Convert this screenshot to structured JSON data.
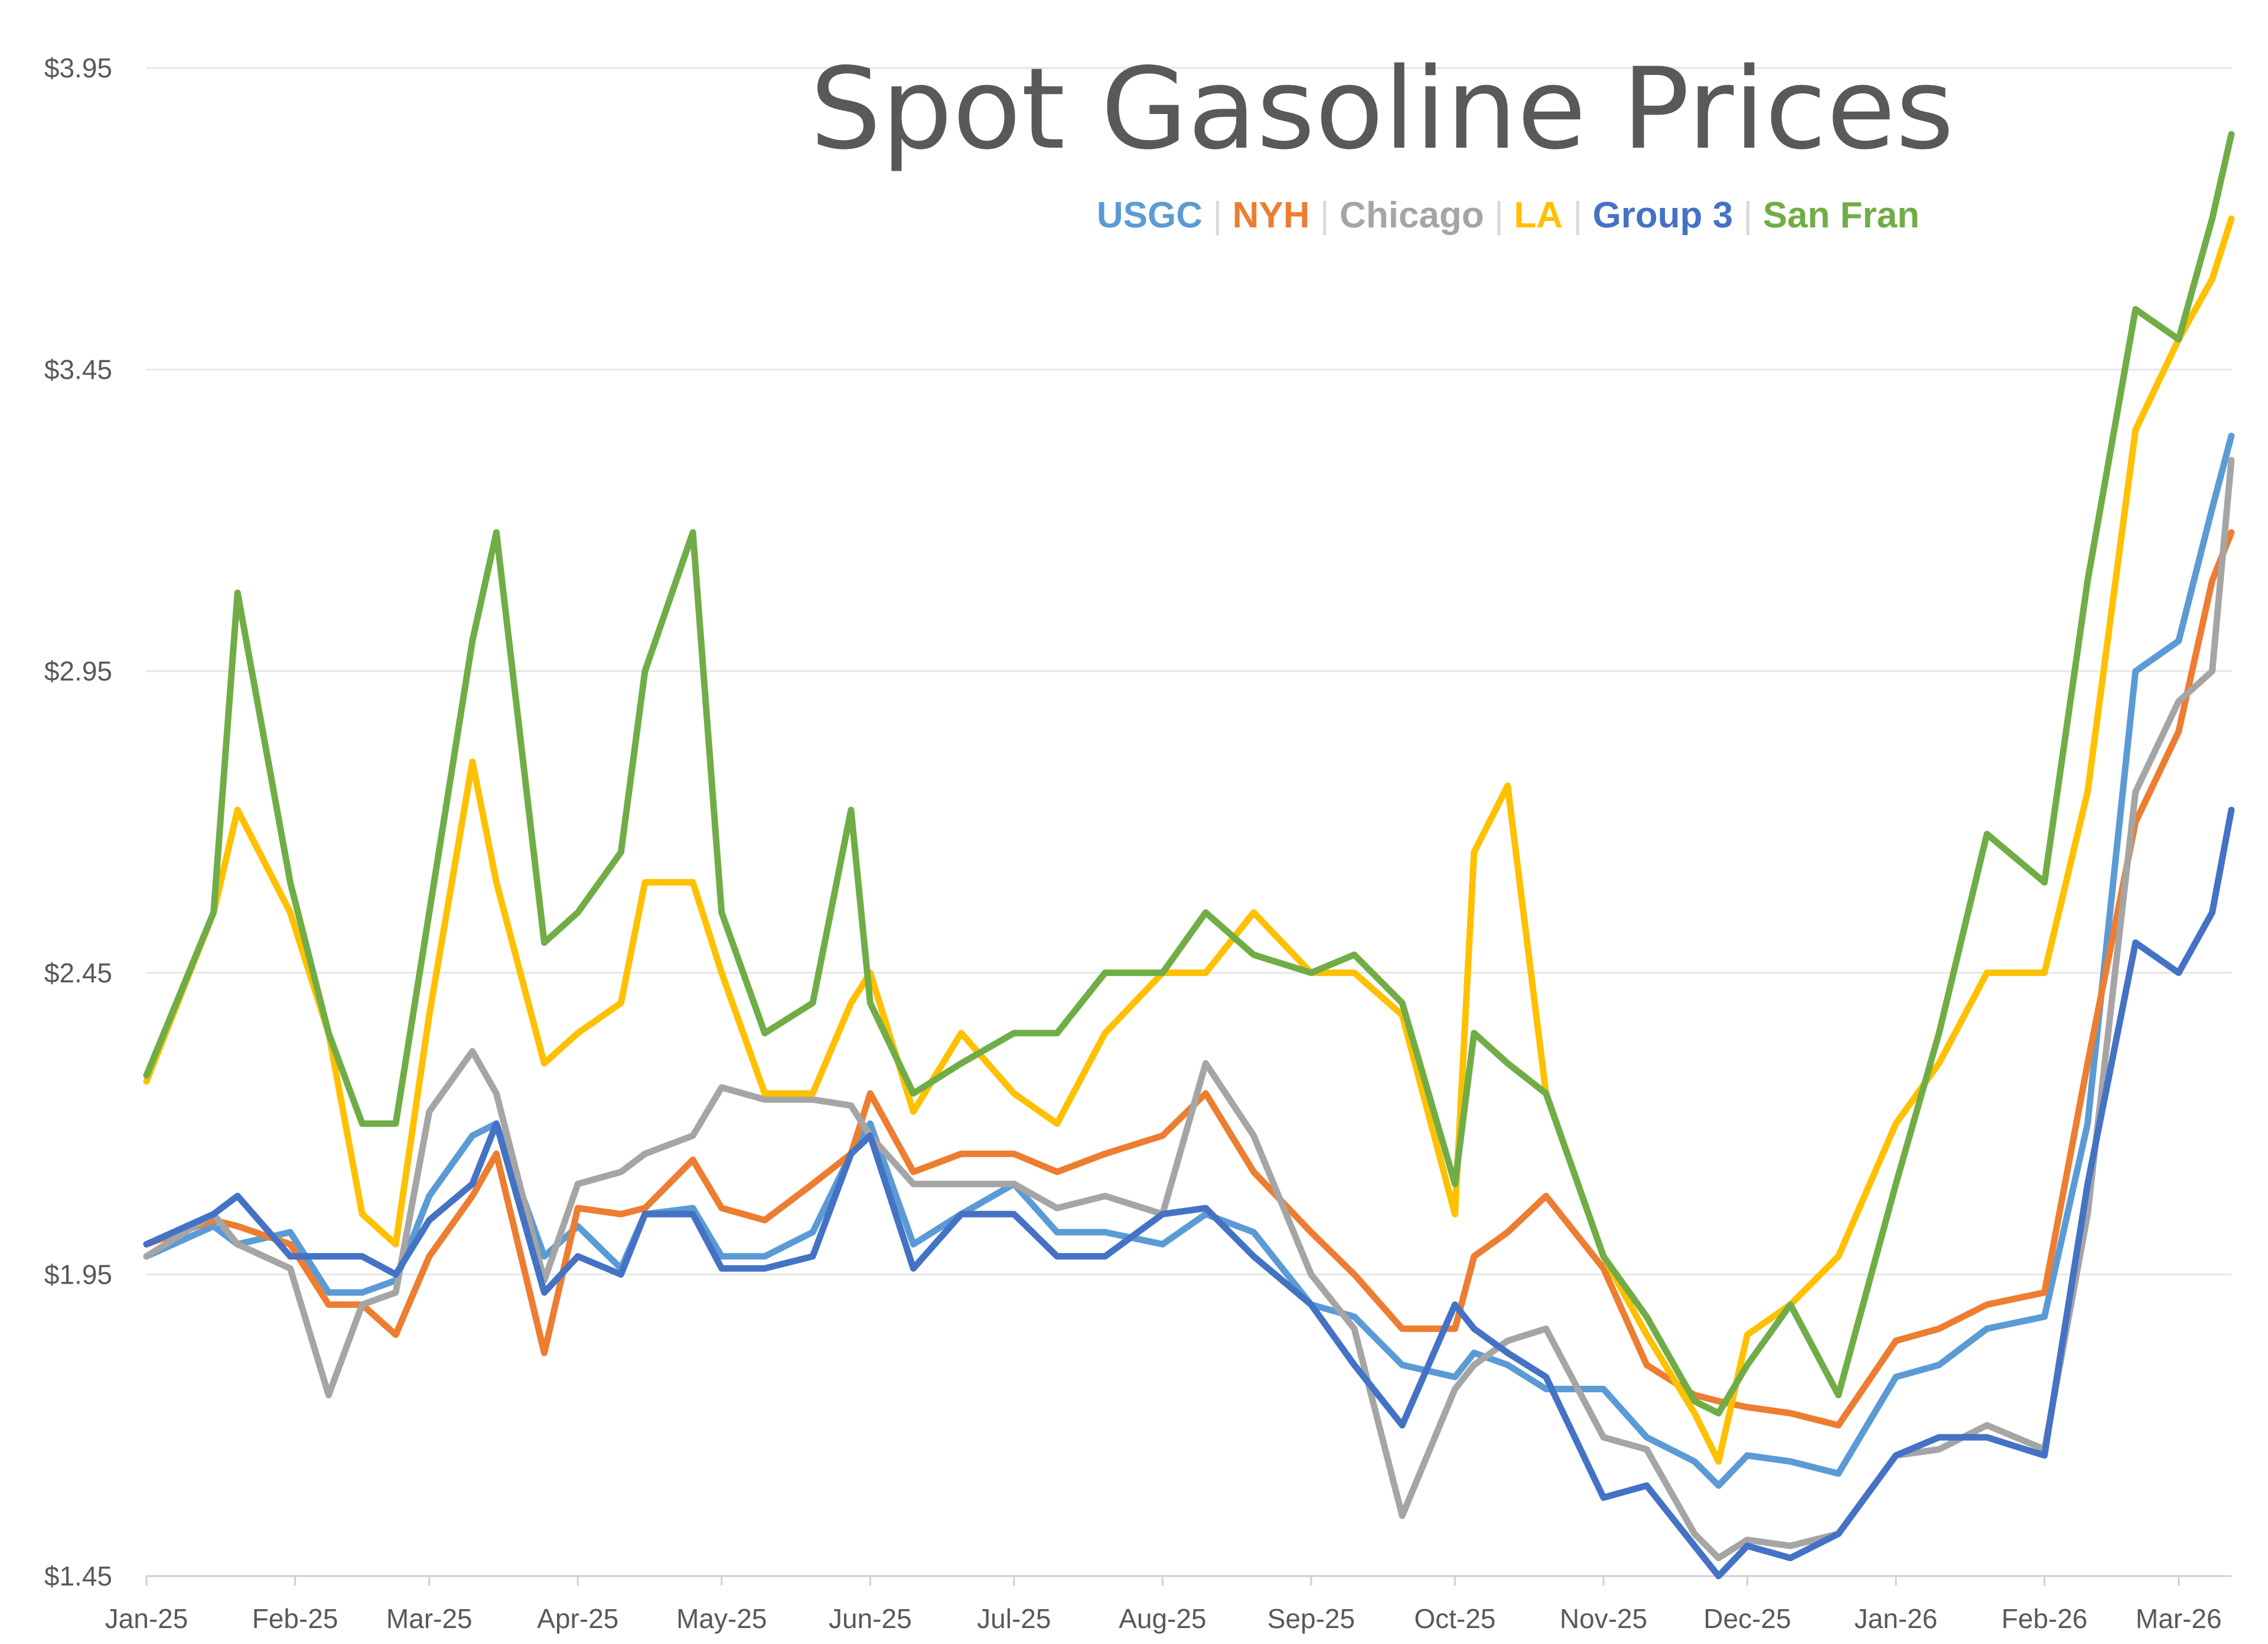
{
  "chart_data": {
    "type": "line",
    "title": "Spot Gasoline Prices",
    "xlabel": "",
    "ylabel": "",
    "ylim": [
      1.45,
      3.95
    ],
    "yticks": [
      "$3.95",
      "$3.45",
      "$2.95",
      "$2.45",
      "$1.95",
      "$1.45"
    ],
    "yticks_values": [
      3.95,
      3.45,
      2.95,
      2.45,
      1.95,
      1.45
    ],
    "xticks": [
      "Jan-25",
      "Feb-25",
      "Mar-25",
      "Apr-25",
      "May-25",
      "Jun-25",
      "Jul-25",
      "Aug-25",
      "Sep-25",
      "Oct-25",
      "Nov-25",
      "Dec-25",
      "Jan-26",
      "Feb-26",
      "Mar-26"
    ],
    "xticks_values": [
      "2025-01-01",
      "2025-02-01",
      "2025-03-01",
      "2025-04-01",
      "2025-05-01",
      "2025-06-01",
      "2025-07-01",
      "2025-08-01",
      "2025-09-01",
      "2025-10-01",
      "2025-11-01",
      "2025-12-01",
      "2026-01-01",
      "2026-02-01",
      "2026-03-01"
    ],
    "x_end": "2026-03-12",
    "grid": true,
    "legend_position": "top-right",
    "legend_separator": "|",
    "x": [
      "2025-01-01",
      "2025-01-15",
      "2025-01-20",
      "2025-01-31",
      "2025-02-08",
      "2025-02-15",
      "2025-02-22",
      "2025-03-01",
      "2025-03-10",
      "2025-03-15",
      "2025-03-25",
      "2025-04-01",
      "2025-04-10",
      "2025-04-15",
      "2025-04-25",
      "2025-05-01",
      "2025-05-10",
      "2025-05-20",
      "2025-05-28",
      "2025-06-01",
      "2025-06-10",
      "2025-06-20",
      "2025-07-01",
      "2025-07-10",
      "2025-07-20",
      "2025-08-01",
      "2025-08-10",
      "2025-08-20",
      "2025-09-01",
      "2025-09-10",
      "2025-09-20",
      "2025-10-01",
      "2025-10-05",
      "2025-10-12",
      "2025-10-20",
      "2025-11-01",
      "2025-11-10",
      "2025-11-20",
      "2025-11-25",
      "2025-12-01",
      "2025-12-10",
      "2025-12-20",
      "2026-01-01",
      "2026-01-10",
      "2026-01-20",
      "2026-02-01",
      "2026-02-10",
      "2026-02-20",
      "2026-03-01",
      "2026-03-08",
      "2026-03-12"
    ],
    "series": [
      {
        "name": "USGC",
        "color": "#5b9bd5",
        "values": [
          1.98,
          2.03,
          2.0,
          2.02,
          1.92,
          1.92,
          1.94,
          2.08,
          2.18,
          2.2,
          1.98,
          2.03,
          1.96,
          2.05,
          2.06,
          1.98,
          1.98,
          2.02,
          2.15,
          2.2,
          2.0,
          2.05,
          2.1,
          2.02,
          2.02,
          2.0,
          2.05,
          2.02,
          1.9,
          1.88,
          1.8,
          1.78,
          1.82,
          1.8,
          1.76,
          1.76,
          1.68,
          1.64,
          1.6,
          1.65,
          1.64,
          1.62,
          1.78,
          1.8,
          1.86,
          1.88,
          2.2,
          2.95,
          3.0,
          3.22,
          3.34
        ]
      },
      {
        "name": "NYH",
        "color": "#ed7d31",
        "values": [
          2.0,
          2.04,
          2.03,
          2.0,
          1.9,
          1.9,
          1.85,
          1.98,
          2.08,
          2.15,
          1.82,
          2.06,
          2.05,
          2.06,
          2.14,
          2.06,
          2.04,
          2.1,
          2.15,
          2.25,
          2.12,
          2.15,
          2.15,
          2.12,
          2.15,
          2.18,
          2.25,
          2.12,
          2.02,
          1.95,
          1.86,
          1.86,
          1.98,
          2.02,
          2.08,
          1.96,
          1.8,
          1.75,
          1.74,
          1.73,
          1.72,
          1.7,
          1.84,
          1.86,
          1.9,
          1.92,
          2.3,
          2.7,
          2.85,
          3.1,
          3.18
        ]
      },
      {
        "name": "Chicago",
        "color": "#a5a5a5",
        "values": [
          1.98,
          2.05,
          2.0,
          1.96,
          1.75,
          1.9,
          1.92,
          2.22,
          2.32,
          2.25,
          1.94,
          2.1,
          2.12,
          2.15,
          2.18,
          2.26,
          2.24,
          2.24,
          2.23,
          2.18,
          2.1,
          2.1,
          2.1,
          2.06,
          2.08,
          2.05,
          2.3,
          2.18,
          1.95,
          1.86,
          1.55,
          1.76,
          1.8,
          1.84,
          1.86,
          1.68,
          1.66,
          1.52,
          1.48,
          1.51,
          1.5,
          1.52,
          1.65,
          1.66,
          1.7,
          1.66,
          2.05,
          2.75,
          2.9,
          2.95,
          3.3
        ]
      },
      {
        "name": "LA",
        "color": "#ffc000",
        "values": [
          2.27,
          2.55,
          2.72,
          2.55,
          2.35,
          2.05,
          2.0,
          2.38,
          2.8,
          2.6,
          2.3,
          2.35,
          2.4,
          2.6,
          2.6,
          2.45,
          2.25,
          2.25,
          2.4,
          2.45,
          2.22,
          2.35,
          2.25,
          2.2,
          2.35,
          2.45,
          2.45,
          2.55,
          2.45,
          2.45,
          2.38,
          2.05,
          2.65,
          2.76,
          2.25,
          1.98,
          1.85,
          1.72,
          1.64,
          1.85,
          1.9,
          1.98,
          2.2,
          2.3,
          2.45,
          2.45,
          2.75,
          3.35,
          3.5,
          3.6,
          3.7
        ]
      },
      {
        "name": "Group 3",
        "color": "#4472c4",
        "values": [
          2.0,
          2.05,
          2.08,
          1.98,
          1.98,
          1.98,
          1.95,
          2.04,
          2.1,
          2.2,
          1.92,
          1.98,
          1.95,
          2.05,
          2.05,
          1.96,
          1.96,
          1.98,
          2.15,
          2.18,
          1.96,
          2.05,
          2.05,
          1.98,
          1.98,
          2.05,
          2.06,
          1.98,
          1.9,
          1.8,
          1.7,
          1.9,
          1.86,
          1.82,
          1.78,
          1.58,
          1.6,
          1.5,
          1.45,
          1.5,
          1.48,
          1.52,
          1.65,
          1.68,
          1.68,
          1.65,
          2.1,
          2.5,
          2.45,
          2.55,
          2.72
        ]
      },
      {
        "name": "San Fran",
        "color": "#70ad47",
        "values": [
          2.28,
          2.55,
          3.08,
          2.6,
          2.35,
          2.2,
          2.2,
          2.55,
          3.0,
          3.18,
          2.5,
          2.55,
          2.65,
          2.95,
          3.18,
          2.55,
          2.35,
          2.4,
          2.72,
          2.4,
          2.25,
          2.3,
          2.35,
          2.35,
          2.45,
          2.45,
          2.55,
          2.48,
          2.45,
          2.48,
          2.4,
          2.1,
          2.35,
          2.3,
          2.25,
          1.98,
          1.88,
          1.74,
          1.72,
          1.8,
          1.9,
          1.75,
          2.1,
          2.35,
          2.68,
          2.6,
          3.1,
          3.55,
          3.5,
          3.7,
          3.84
        ]
      }
    ]
  }
}
